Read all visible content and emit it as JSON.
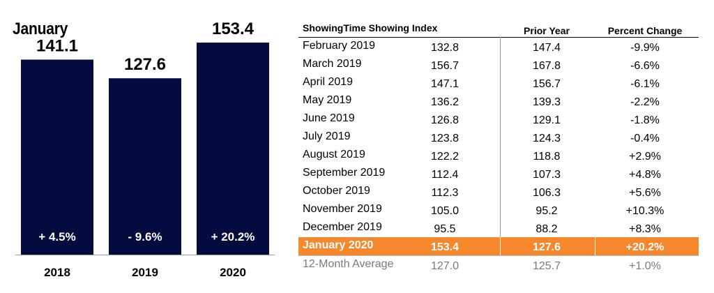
{
  "chart_data": [
    {
      "type": "bar",
      "title": "January",
      "categories": [
        "2018",
        "2019",
        "2020"
      ],
      "values": [
        141.1,
        127.6,
        153.4
      ],
      "value_labels": [
        "141.1",
        "127.6",
        "153.4"
      ],
      "change_labels": [
        "+ 4.5%",
        "- 9.6%",
        "+ 20.2%"
      ],
      "ylim": [
        0,
        160
      ],
      "bar_color": "#030b3f",
      "grid": false
    },
    {
      "type": "table",
      "columns": [
        "ShowingTime Showing Index",
        "",
        "Prior Year",
        "Percent Change"
      ],
      "rows": [
        {
          "label": "February 2019",
          "value": "132.8",
          "prior": "147.4",
          "pct": "-9.9%"
        },
        {
          "label": "March 2019",
          "value": "156.7",
          "prior": "167.8",
          "pct": "-6.6%"
        },
        {
          "label": "April 2019",
          "value": "147.1",
          "prior": "156.7",
          "pct": "-6.1%"
        },
        {
          "label": "May 2019",
          "value": "136.2",
          "prior": "139.3",
          "pct": "-2.2%"
        },
        {
          "label": "June 2019",
          "value": "126.8",
          "prior": "129.1",
          "pct": "-1.8%"
        },
        {
          "label": "July 2019",
          "value": "123.8",
          "prior": "124.3",
          "pct": "-0.4%"
        },
        {
          "label": "August 2019",
          "value": "122.2",
          "prior": "118.8",
          "pct": "+2.9%"
        },
        {
          "label": "September 2019",
          "value": "112.4",
          "prior": "107.3",
          "pct": "+4.8%"
        },
        {
          "label": "October 2019",
          "value": "112.3",
          "prior": "106.3",
          "pct": "+5.6%"
        },
        {
          "label": "November 2019",
          "value": "105.0",
          "prior": "95.2",
          "pct": "+10.3%"
        },
        {
          "label": "December 2019",
          "value": "95.5",
          "prior": "88.2",
          "pct": "+8.3%"
        }
      ],
      "highlight": {
        "label": "January 2020",
        "value": "153.4",
        "prior": "127.6",
        "pct": "+20.2%"
      },
      "average": {
        "label": "12-Month Average",
        "value": "127.0",
        "prior": "125.7",
        "pct": "+1.0%"
      },
      "highlight_color": "#f5872c"
    }
  ]
}
